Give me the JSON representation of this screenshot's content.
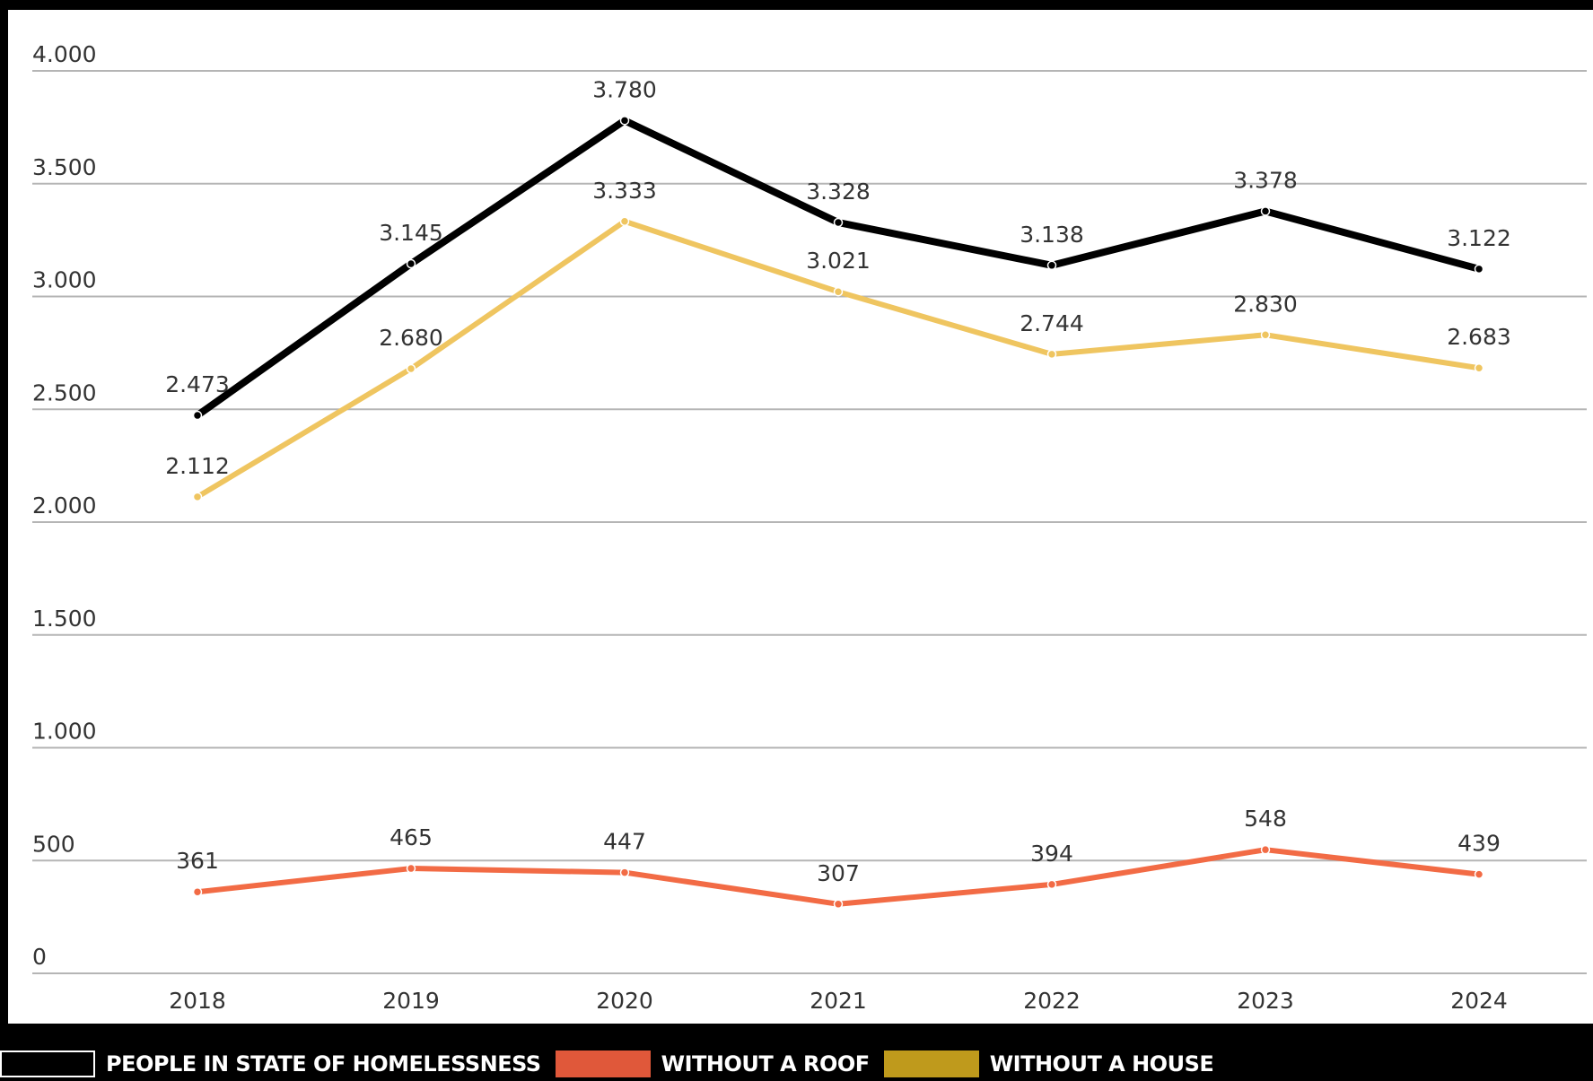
{
  "chart_data": {
    "type": "line",
    "title": "",
    "xlabel": "",
    "ylabel": "",
    "categories": [
      "2018",
      "2019",
      "2020",
      "2021",
      "2022",
      "2023",
      "2024"
    ],
    "ylim": [
      0,
      4000
    ],
    "yticks": [
      0,
      500,
      1000,
      1500,
      2000,
      2500,
      3000,
      3500,
      4000
    ],
    "ytick_labels": [
      "0",
      "500",
      "1.000",
      "1.500",
      "2.000",
      "2.500",
      "3.000",
      "3.500",
      "4.000"
    ],
    "grid": "horizontal",
    "legend_position": "bottom",
    "series": [
      {
        "name": "PEOPLE IN STATE OF HOMELESSNESS",
        "color": "#000000",
        "values": [
          2473,
          3145,
          3780,
          3328,
          3138,
          3378,
          3122
        ],
        "labels": [
          "2.473",
          "3.145",
          "3.780",
          "3.328",
          "3.138",
          "3.378",
          "3.122"
        ]
      },
      {
        "name": "WITHOUT A ROOF",
        "color": "#f26b45",
        "values": [
          361,
          465,
          447,
          307,
          394,
          548,
          439
        ],
        "labels": [
          "361",
          "465",
          "447",
          "307",
          "394",
          "548",
          "439"
        ]
      },
      {
        "name": "WITHOUT A HOUSE",
        "color": "#efc560",
        "values": [
          2112,
          2680,
          3333,
          3021,
          2744,
          2830,
          2683
        ],
        "labels": [
          "2.112",
          "2.680",
          "3.333",
          "3.021",
          "2.744",
          "2.830",
          "2.683"
        ]
      }
    ]
  },
  "legend": {
    "items": [
      {
        "label": "PEOPLE IN STATE OF HOMELESSNESS",
        "swatch_color": "#000000",
        "swatch_border": "#ffffff"
      },
      {
        "label": "WITHOUT A ROOF",
        "swatch_color": "#e0583a",
        "swatch_border": "#e0583a"
      },
      {
        "label": "WITHOUT A HOUSE",
        "swatch_color": "#bf9a1c",
        "swatch_border": "#bf9a1c"
      }
    ]
  }
}
